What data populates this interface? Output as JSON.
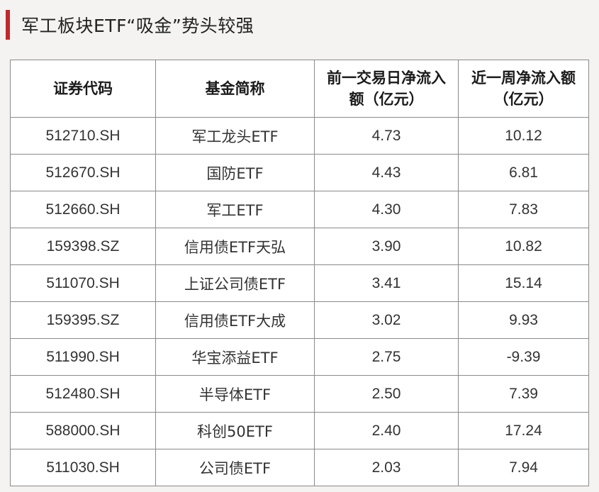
{
  "title": "军工板块ETF“吸金”势头较强",
  "table": {
    "headers": [
      "证券代码",
      "基金简称",
      "前一交易日净流入额（亿元）",
      "近一周净流入额（亿元）"
    ],
    "rows": [
      {
        "code": "512710.SH",
        "name": "军工龙头ETF",
        "prev_day": "4.73",
        "week": "10.12"
      },
      {
        "code": "512670.SH",
        "name": "国防ETF",
        "prev_day": "4.43",
        "week": "6.81"
      },
      {
        "code": "512660.SH",
        "name": "军工ETF",
        "prev_day": "4.30",
        "week": "7.83"
      },
      {
        "code": "159398.SZ",
        "name": "信用债ETF天弘",
        "prev_day": "3.90",
        "week": "10.82"
      },
      {
        "code": "511070.SH",
        "name": "上证公司债ETF",
        "prev_day": "3.41",
        "week": "15.14"
      },
      {
        "code": "159395.SZ",
        "name": "信用债ETF大成",
        "prev_day": "3.02",
        "week": "9.93"
      },
      {
        "code": "511990.SH",
        "name": "华宝添益ETF",
        "prev_day": "2.75",
        "week": "-9.39"
      },
      {
        "code": "512480.SH",
        "name": "半导体ETF",
        "prev_day": "2.50",
        "week": "7.39"
      },
      {
        "code": "588000.SH",
        "name": "科创50ETF",
        "prev_day": "2.40",
        "week": "17.24"
      },
      {
        "code": "511030.SH",
        "name": "公司债ETF",
        "prev_day": "2.03",
        "week": "7.94"
      }
    ]
  },
  "colors": {
    "accent": "#c0282d",
    "background": "#f4f3f1",
    "table_bg": "#ffffff",
    "border": "#8a8a8a"
  }
}
